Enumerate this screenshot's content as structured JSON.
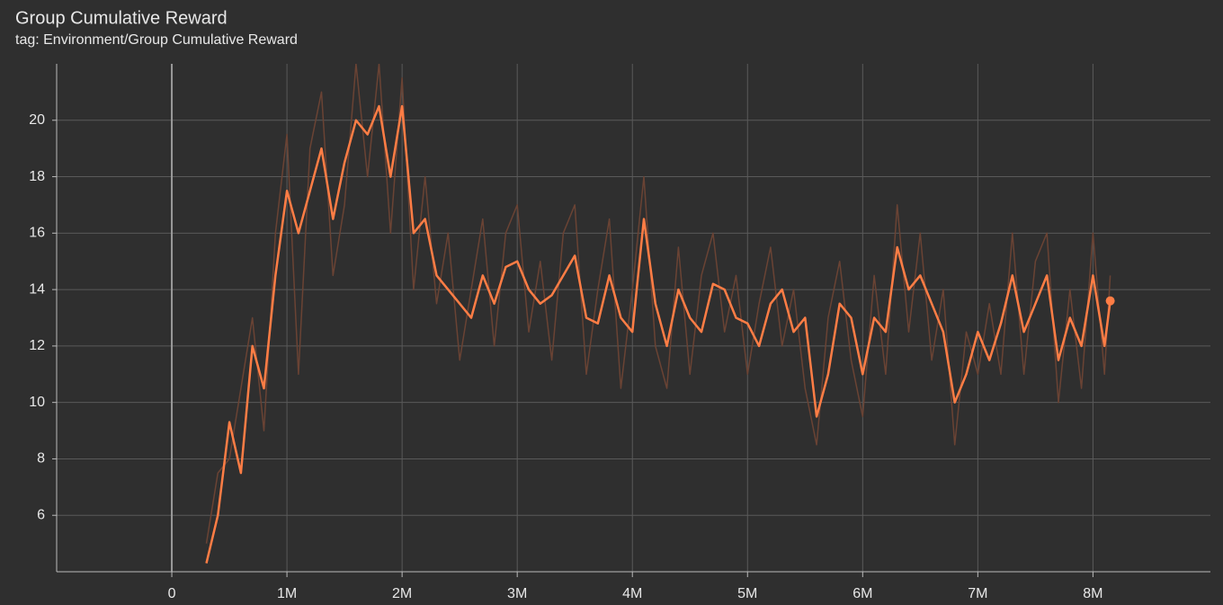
{
  "chart_data": {
    "type": "line",
    "title": "Group Cumulative Reward",
    "subtitle": "tag: Environment/Group Cumulative Reward",
    "x": [
      300000,
      400000,
      500000,
      600000,
      700000,
      800000,
      900000,
      1000000,
      1100000,
      1200000,
      1300000,
      1400000,
      1500000,
      1600000,
      1700000,
      1800000,
      1900000,
      2000000,
      2100000,
      2200000,
      2300000,
      2400000,
      2500000,
      2600000,
      2700000,
      2800000,
      2900000,
      3000000,
      3100000,
      3200000,
      3300000,
      3400000,
      3500000,
      3600000,
      3700000,
      3800000,
      3900000,
      4000000,
      4100000,
      4200000,
      4300000,
      4400000,
      4500000,
      4600000,
      4700000,
      4800000,
      4900000,
      5000000,
      5100000,
      5200000,
      5300000,
      5400000,
      5500000,
      5600000,
      5700000,
      5800000,
      5900000,
      6000000,
      6100000,
      6200000,
      6300000,
      6400000,
      6500000,
      6600000,
      6700000,
      6800000,
      6900000,
      7000000,
      7100000,
      7200000,
      7300000,
      7400000,
      7500000,
      7600000,
      7700000,
      7800000,
      7900000,
      8000000,
      8100000,
      8150000
    ],
    "series": [
      {
        "color": "#6a4334",
        "values": [
          5.0,
          7.5,
          8.0,
          10.5,
          13.0,
          9.0,
          16.0,
          19.5,
          11.0,
          19.0,
          21.0,
          14.5,
          17.0,
          22.0,
          18.0,
          22.0,
          16.0,
          21.5,
          14.0,
          18.0,
          13.5,
          16.0,
          11.5,
          14.0,
          16.5,
          12.0,
          16.0,
          17.0,
          12.5,
          15.0,
          11.5,
          16.0,
          17.0,
          11.0,
          14.0,
          16.5,
          10.5,
          14.0,
          18.0,
          12.0,
          10.5,
          15.5,
          11.0,
          14.5,
          16.0,
          12.5,
          14.5,
          11.0,
          13.5,
          15.5,
          12.0,
          14.0,
          10.5,
          8.5,
          13.0,
          15.0,
          11.5,
          9.5,
          14.5,
          11.0,
          17.0,
          12.5,
          16.0,
          11.5,
          14.0,
          8.5,
          12.5,
          11.0,
          13.5,
          11.0,
          16.0,
          11.0,
          15.0,
          16.0,
          10.0,
          14.0,
          10.5,
          16.0,
          11.0,
          14.5
        ]
      },
      {
        "color": "#ff7d45",
        "values": [
          4.3,
          6.0,
          9.3,
          7.5,
          12.0,
          10.5,
          14.5,
          17.5,
          16.0,
          17.5,
          19.0,
          16.5,
          18.5,
          20.0,
          19.5,
          20.5,
          18.0,
          20.5,
          16.0,
          16.5,
          14.5,
          14.0,
          13.5,
          13.0,
          14.5,
          13.5,
          14.8,
          15.0,
          14.0,
          13.5,
          13.8,
          14.5,
          15.2,
          13.0,
          12.8,
          14.5,
          13.0,
          12.5,
          16.5,
          13.5,
          12.0,
          14.0,
          13.0,
          12.5,
          14.2,
          14.0,
          13.0,
          12.8,
          12.0,
          13.5,
          14.0,
          12.5,
          13.0,
          9.5,
          11.0,
          13.5,
          13.0,
          11.0,
          13.0,
          12.5,
          15.5,
          14.0,
          14.5,
          13.5,
          12.5,
          10.0,
          11.0,
          12.5,
          11.5,
          12.8,
          14.5,
          12.5,
          13.5,
          14.5,
          11.5,
          13.0,
          12.0,
          14.5,
          12.0,
          13.6
        ]
      }
    ],
    "xlim": [
      -1000000,
      9020000
    ],
    "ylim": [
      4,
      22
    ],
    "xticks": [
      0,
      {
        "value": 1000000,
        "label": "1M"
      },
      {
        "value": 2000000,
        "label": "2M"
      },
      {
        "value": 3000000,
        "label": "3M"
      },
      {
        "value": 4000000,
        "label": "4M"
      },
      {
        "value": 5000000,
        "label": "5M"
      },
      {
        "value": 6000000,
        "label": "6M"
      },
      {
        "value": 7000000,
        "label": "7M"
      },
      {
        "value": 8000000,
        "label": "8M"
      }
    ],
    "yticks": [
      6,
      8,
      10,
      12,
      14,
      16,
      18,
      20
    ],
    "grid": true
  }
}
